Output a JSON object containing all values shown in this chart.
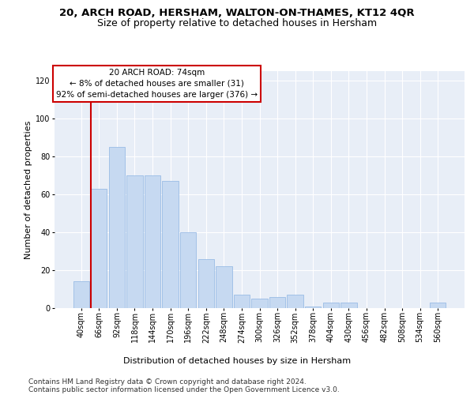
{
  "title": "20, ARCH ROAD, HERSHAM, WALTON-ON-THAMES, KT12 4QR",
  "subtitle": "Size of property relative to detached houses in Hersham",
  "xlabel": "Distribution of detached houses by size in Hersham",
  "ylabel": "Number of detached properties",
  "bar_labels": [
    "40sqm",
    "66sqm",
    "92sqm",
    "118sqm",
    "144sqm",
    "170sqm",
    "196sqm",
    "222sqm",
    "248sqm",
    "274sqm",
    "300sqm",
    "326sqm",
    "352sqm",
    "378sqm",
    "404sqm",
    "430sqm",
    "456sqm",
    "482sqm",
    "508sqm",
    "534sqm",
    "560sqm"
  ],
  "bar_values": [
    14,
    63,
    85,
    70,
    70,
    67,
    40,
    26,
    22,
    7,
    5,
    6,
    7,
    1,
    3,
    3,
    0,
    0,
    0,
    0,
    3
  ],
  "bar_color": "#c6d9f1",
  "bar_edge_color": "#8db4e2",
  "vline_color": "#cc0000",
  "annotation_text": "20 ARCH ROAD: 74sqm\n← 8% of detached houses are smaller (31)\n92% of semi-detached houses are larger (376) →",
  "annotation_box_facecolor": "#ffffff",
  "annotation_box_edgecolor": "#cc0000",
  "ylim": [
    0,
    125
  ],
  "yticks": [
    0,
    20,
    40,
    60,
    80,
    100,
    120
  ],
  "background_color": "#e8eef7",
  "grid_color": "#ffffff",
  "footer_line1": "Contains HM Land Registry data © Crown copyright and database right 2024.",
  "footer_line2": "Contains public sector information licensed under the Open Government Licence v3.0.",
  "title_fontsize": 9.5,
  "subtitle_fontsize": 9,
  "axis_label_fontsize": 8,
  "tick_fontsize": 7,
  "annotation_fontsize": 7.5,
  "footer_fontsize": 6.5
}
